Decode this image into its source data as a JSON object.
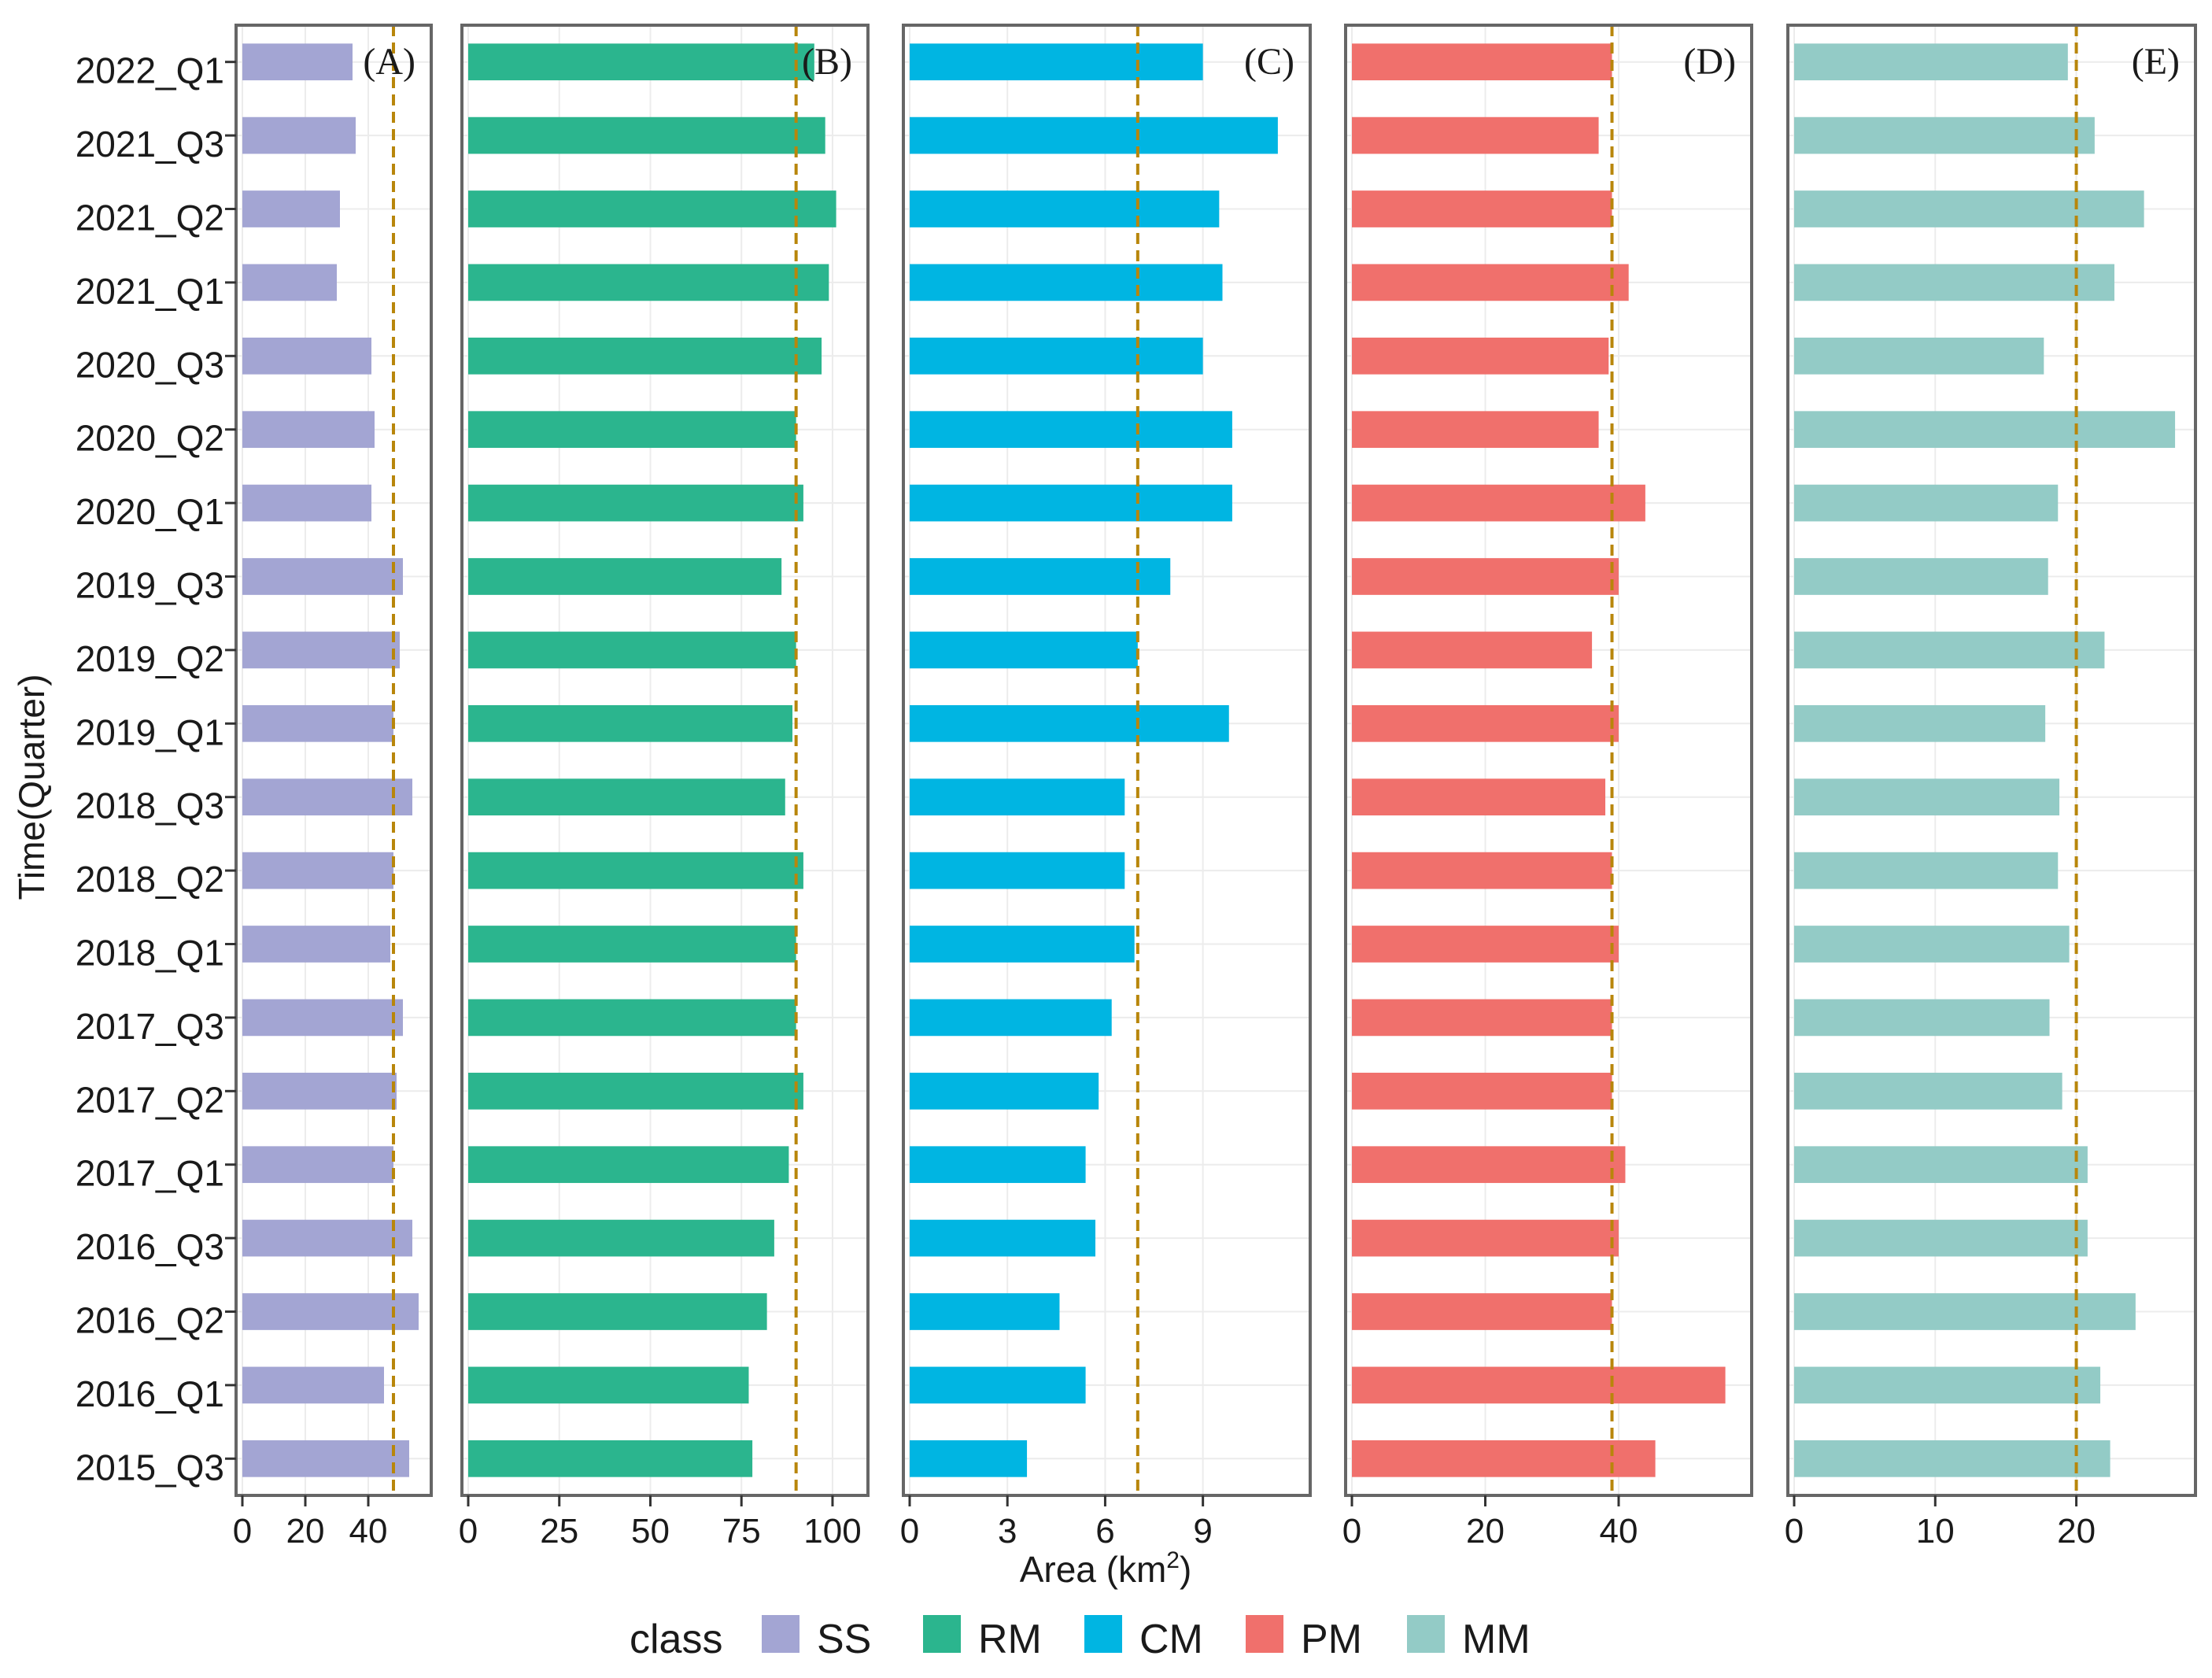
{
  "chart_data": {
    "type": "bar",
    "orientation": "horizontal",
    "ylabel": "Time(Quarter)",
    "xlabel_main": "Area (km",
    "xlabel_sup": "2",
    "xlabel_close": ")",
    "categories": [
      "2022_Q1",
      "2021_Q3",
      "2021_Q2",
      "2021_Q1",
      "2020_Q3",
      "2020_Q2",
      "2020_Q1",
      "2019_Q3",
      "2019_Q2",
      "2019_Q1",
      "2018_Q3",
      "2018_Q2",
      "2018_Q1",
      "2017_Q3",
      "2017_Q2",
      "2017_Q1",
      "2016_Q3",
      "2016_Q2",
      "2016_Q1",
      "2015_Q3"
    ],
    "legend": {
      "title": "class",
      "placement": "bottom"
    },
    "grid": true,
    "panels": [
      {
        "tag": "(A)",
        "name": "SS",
        "color": "#A3A5D3",
        "xlim": [
          0,
          58
        ],
        "ticks": [
          0,
          20,
          40
        ],
        "ref_line": 48,
        "values": [
          35,
          36,
          31,
          30,
          41,
          42,
          41,
          51,
          50,
          48,
          54,
          48,
          47,
          51,
          49,
          48,
          54,
          56,
          45,
          53
        ]
      },
      {
        "tag": "(B)",
        "name": "RM",
        "color": "#2BB58E",
        "xlim": [
          0,
          108
        ],
        "ticks": [
          0,
          25,
          50,
          75,
          100
        ],
        "ref_line": 90,
        "values": [
          95,
          98,
          101,
          99,
          97,
          90,
          92,
          86,
          90,
          89,
          87,
          92,
          90,
          90,
          92,
          88,
          84,
          82,
          77,
          78
        ]
      },
      {
        "tag": "(C)",
        "name": "CM",
        "color": "#00B5E2",
        "xlim": [
          0,
          12.1
        ],
        "ticks": [
          0,
          3,
          6,
          9
        ],
        "ref_line": 7,
        "values": [
          9,
          11.3,
          9.5,
          9.6,
          9,
          9.9,
          9.9,
          8,
          7,
          9.8,
          6.6,
          6.6,
          6.9,
          6.2,
          5.8,
          5.4,
          5.7,
          4.6,
          5.4,
          3.6
        ]
      },
      {
        "tag": "(D)",
        "name": "PM",
        "color": "#F0706C",
        "xlim": [
          0,
          59
        ],
        "ticks": [
          0,
          20,
          40
        ],
        "ref_line": 39,
        "values": [
          39,
          37,
          39,
          41.5,
          38.5,
          37,
          44,
          40,
          36,
          40,
          38,
          39,
          40,
          39,
          39,
          41,
          40,
          39,
          56,
          45.5
        ]
      },
      {
        "tag": "(E)",
        "name": "MM",
        "color": "#93CBC6",
        "xlim": [
          0,
          28
        ],
        "ticks": [
          0,
          10,
          20
        ],
        "ref_line": 20,
        "values": [
          19.4,
          21.3,
          24.8,
          22.7,
          17.7,
          27,
          18.7,
          18,
          22,
          17.8,
          18.8,
          18.7,
          19.5,
          18.1,
          19,
          20.8,
          20.8,
          24.2,
          21.7,
          22.4
        ]
      }
    ]
  }
}
